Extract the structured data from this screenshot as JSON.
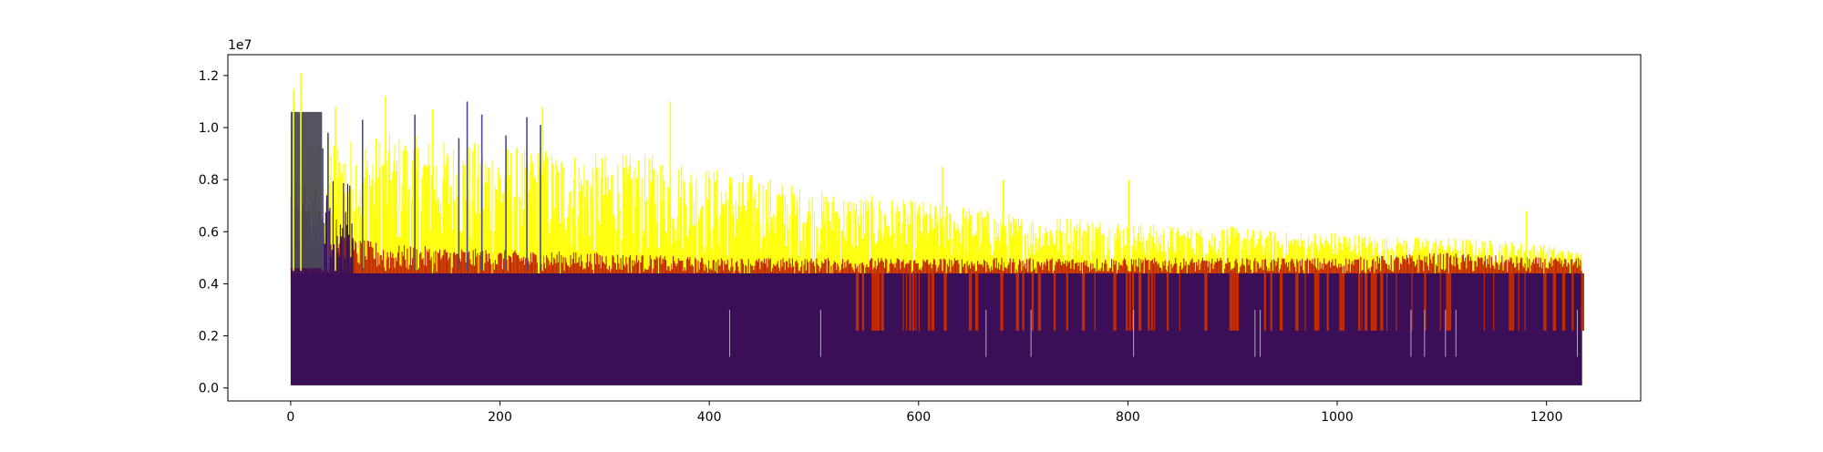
{
  "chart_data": {
    "type": "bar",
    "title": "",
    "xlabel": "",
    "ylabel": "",
    "y_offset_text": "1e7",
    "xlim": [
      -60,
      1290
    ],
    "ylim": [
      -0.05,
      1.28
    ],
    "y_scale_factor": 10000000,
    "x_ticks": [
      0,
      200,
      400,
      600,
      800,
      1000,
      1200
    ],
    "x_tick_labels": [
      "0",
      "200",
      "400",
      "600",
      "800",
      "1000",
      "1200"
    ],
    "y_ticks": [
      0.0,
      0.2,
      0.4,
      0.6,
      0.8,
      1.0,
      1.2
    ],
    "y_tick_labels": [
      "0.0",
      "0.2",
      "0.4",
      "0.6",
      "0.8",
      "1.0",
      "1.2"
    ],
    "grid": false,
    "legend": "none",
    "n_bars": 1234,
    "series": [
      {
        "color": "#ffff00",
        "kind": "dense-bars",
        "note_values": "envelope of bar tops, x in data units, y in units of 1e7",
        "envelope_x": [
          0,
          10,
          50,
          100,
          150,
          200,
          250,
          300,
          350,
          400,
          450,
          500,
          550,
          600,
          650,
          700,
          750,
          800,
          850,
          900,
          950,
          1000,
          1050,
          1100,
          1150,
          1200,
          1234
        ],
        "envelope_top": [
          1.15,
          1.0,
          0.96,
          0.98,
          0.95,
          0.94,
          0.92,
          0.9,
          0.9,
          0.85,
          0.82,
          0.76,
          0.74,
          0.72,
          0.7,
          0.66,
          0.66,
          0.64,
          0.62,
          0.62,
          0.6,
          0.6,
          0.58,
          0.58,
          0.57,
          0.55,
          0.52
        ],
        "floor": 0.46
      },
      {
        "color": "#c22a00",
        "kind": "dense-bars",
        "note_values": "envelope of bar tops, x in data units, y in units of 1e7",
        "envelope_x": [
          0,
          50,
          100,
          200,
          300,
          400,
          500,
          600,
          700,
          800,
          900,
          1000,
          1100,
          1200,
          1234
        ],
        "envelope_top": [
          0.75,
          0.58,
          0.55,
          0.53,
          0.52,
          0.5,
          0.5,
          0.5,
          0.5,
          0.5,
          0.5,
          0.5,
          0.52,
          0.5,
          0.5
        ],
        "floor": 0.43
      },
      {
        "color": "#3a0f58",
        "kind": "dense-bars",
        "plateau": 0.44,
        "floor": 0.01,
        "low_region_start_x": 540,
        "low_region_level": 0.22
      },
      {
        "color": "#4a4a5a",
        "kind": "saturated-block",
        "x_range": [
          0,
          30
        ],
        "top": 1.06
      }
    ],
    "spikes": [
      {
        "x": 2,
        "y": 1.15,
        "color": "#ffff00"
      },
      {
        "x": 9,
        "y": 1.21,
        "color": "#ffff00"
      },
      {
        "x": 42,
        "y": 1.08,
        "color": "#ffff00"
      },
      {
        "x": 90,
        "y": 1.12,
        "color": "#ffff00"
      },
      {
        "x": 135,
        "y": 1.07,
        "color": "#ffff00"
      },
      {
        "x": 240,
        "y": 1.08,
        "color": "#ffff00"
      },
      {
        "x": 362,
        "y": 1.1,
        "color": "#ffff00"
      },
      {
        "x": 622,
        "y": 0.85,
        "color": "#ffff00"
      },
      {
        "x": 680,
        "y": 0.8,
        "color": "#ffff00"
      },
      {
        "x": 800,
        "y": 0.8,
        "color": "#ffff00"
      },
      {
        "x": 1180,
        "y": 0.68,
        "color": "#ffff00"
      },
      {
        "x": 68,
        "y": 1.03,
        "color": "#4a4a8e"
      },
      {
        "x": 118,
        "y": 1.05,
        "color": "#4a4a8e"
      },
      {
        "x": 160,
        "y": 0.96,
        "color": "#4a4a8e"
      },
      {
        "x": 168,
        "y": 1.1,
        "color": "#4a4a8e"
      },
      {
        "x": 182,
        "y": 1.05,
        "color": "#4a4a8e"
      },
      {
        "x": 205,
        "y": 0.97,
        "color": "#4a4a8e"
      },
      {
        "x": 225,
        "y": 1.04,
        "color": "#4a4a8e"
      },
      {
        "x": 238,
        "y": 1.01,
        "color": "#4a4a8e"
      },
      {
        "x": 30,
        "y": 0.92,
        "color": "#4a4a8e"
      },
      {
        "x": 35,
        "y": 0.98,
        "color": "#4a4a8e"
      }
    ]
  }
}
